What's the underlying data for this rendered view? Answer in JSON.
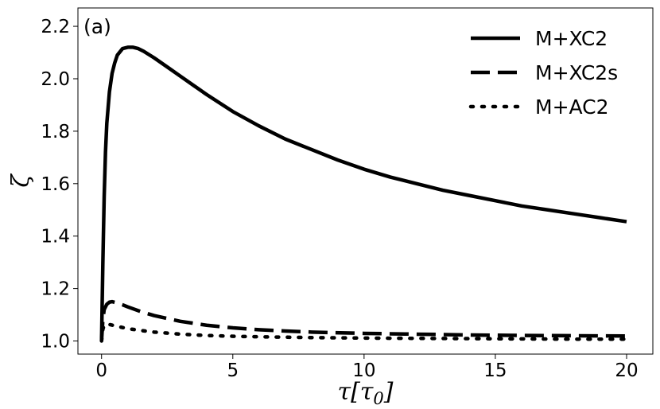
{
  "chart_data": {
    "type": "line",
    "panel_label": "(a)",
    "xlabel_main": "τ[τ",
    "xlabel_sub": "0",
    "xlabel_close": "]",
    "ylabel": "ζ",
    "xlim": [
      -0.9,
      21.0
    ],
    "ylim": [
      0.95,
      2.27
    ],
    "xticks": [
      0,
      5,
      10,
      15,
      20
    ],
    "xtick_labels": [
      "0",
      "5",
      "10",
      "15",
      "20"
    ],
    "yticks": [
      1.0,
      1.2,
      1.4,
      1.6,
      1.8,
      2.0,
      2.2
    ],
    "ytick_labels": [
      "1.0",
      "1.2",
      "1.4",
      "1.6",
      "1.8",
      "2.0",
      "2.2"
    ],
    "grid": false,
    "legend_position": "top-right",
    "series": [
      {
        "name": "M+XC2",
        "style": "solid",
        "x": [
          0,
          0.05,
          0.1,
          0.15,
          0.2,
          0.3,
          0.4,
          0.5,
          0.6,
          0.8,
          1.0,
          1.2,
          1.4,
          1.6,
          2.0,
          2.5,
          3.0,
          3.5,
          4.0,
          5.0,
          6.0,
          7.0,
          8.0,
          9.0,
          10.0,
          11.0,
          12.0,
          13.0,
          14.0,
          15.0,
          16.0,
          17.0,
          18.0,
          19.0,
          20.0
        ],
        "y": [
          1.0,
          1.3,
          1.55,
          1.72,
          1.83,
          1.95,
          2.02,
          2.06,
          2.09,
          2.115,
          2.12,
          2.12,
          2.115,
          2.105,
          2.08,
          2.045,
          2.01,
          1.975,
          1.94,
          1.875,
          1.82,
          1.77,
          1.73,
          1.69,
          1.655,
          1.625,
          1.6,
          1.575,
          1.555,
          1.535,
          1.515,
          1.5,
          1.485,
          1.47,
          1.455
        ]
      },
      {
        "name": "M+XC2s",
        "style": "dashed",
        "x": [
          0,
          0.05,
          0.1,
          0.2,
          0.3,
          0.4,
          0.6,
          0.8,
          1.0,
          1.5,
          2.0,
          3.0,
          4.0,
          5.0,
          6.0,
          7.0,
          8.0,
          10.0,
          12.0,
          14.0,
          16.0,
          18.0,
          20.0
        ],
        "y": [
          1.0,
          1.08,
          1.12,
          1.14,
          1.148,
          1.15,
          1.145,
          1.138,
          1.13,
          1.112,
          1.097,
          1.075,
          1.06,
          1.05,
          1.043,
          1.038,
          1.034,
          1.029,
          1.026,
          1.023,
          1.021,
          1.02,
          1.019
        ]
      },
      {
        "name": "M+AC2",
        "style": "dotted",
        "x": [
          0,
          0.05,
          0.1,
          0.2,
          0.3,
          0.5,
          1.0,
          1.5,
          2.0,
          3.0,
          4.0,
          5.0,
          6.0,
          8.0,
          10.0,
          12.0,
          14.0,
          16.0,
          18.0,
          20.0
        ],
        "y": [
          1.0,
          1.045,
          1.06,
          1.065,
          1.063,
          1.058,
          1.047,
          1.04,
          1.034,
          1.026,
          1.021,
          1.018,
          1.016,
          1.013,
          1.011,
          1.01,
          1.009,
          1.008,
          1.007,
          1.007
        ]
      }
    ]
  }
}
